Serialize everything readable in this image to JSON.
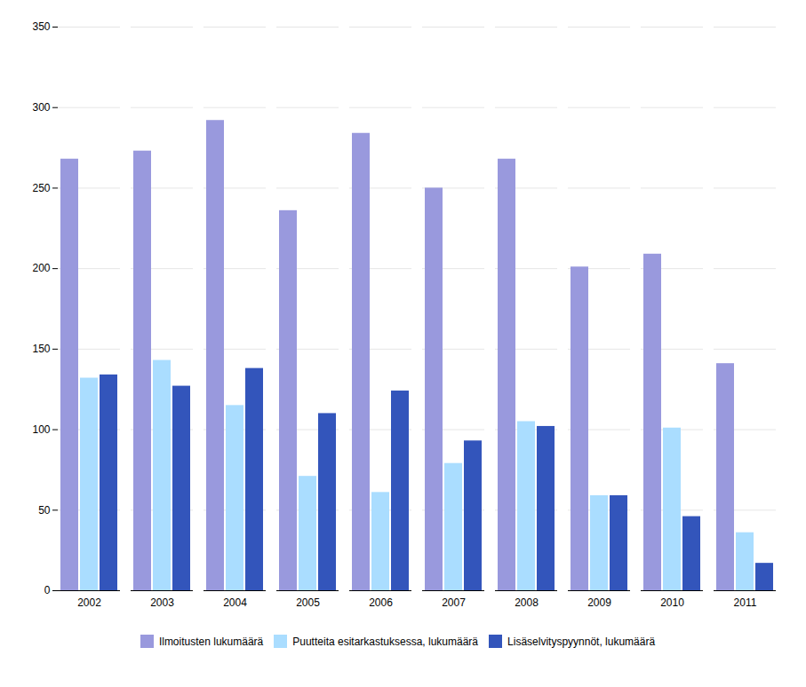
{
  "chart_data": {
    "type": "bar",
    "categories": [
      "2002",
      "2003",
      "2004",
      "2005",
      "2006",
      "2007",
      "2008",
      "2009",
      "2010",
      "2011"
    ],
    "series": [
      {
        "name": "Ilmoitusten lukumäärä",
        "color": "#9999DD",
        "values": [
          268,
          273,
          292,
          236,
          284,
          250,
          268,
          201,
          209,
          141
        ]
      },
      {
        "name": "Puutteita esitarkastuksessa, lukumäärä",
        "color": "#AADDFF",
        "values": [
          132,
          143,
          115,
          71,
          61,
          79,
          105,
          59,
          101,
          36
        ]
      },
      {
        "name": "Lisäselvityspyynnöt, lukumäärä",
        "color": "#3355BB",
        "values": [
          134,
          127,
          138,
          110,
          124,
          93,
          102,
          59,
          46,
          17
        ]
      }
    ],
    "ylim": [
      0,
      350
    ],
    "yticks": [
      0,
      50,
      100,
      150,
      200,
      250,
      300,
      350
    ],
    "grid": true,
    "legend": "bottom"
  }
}
